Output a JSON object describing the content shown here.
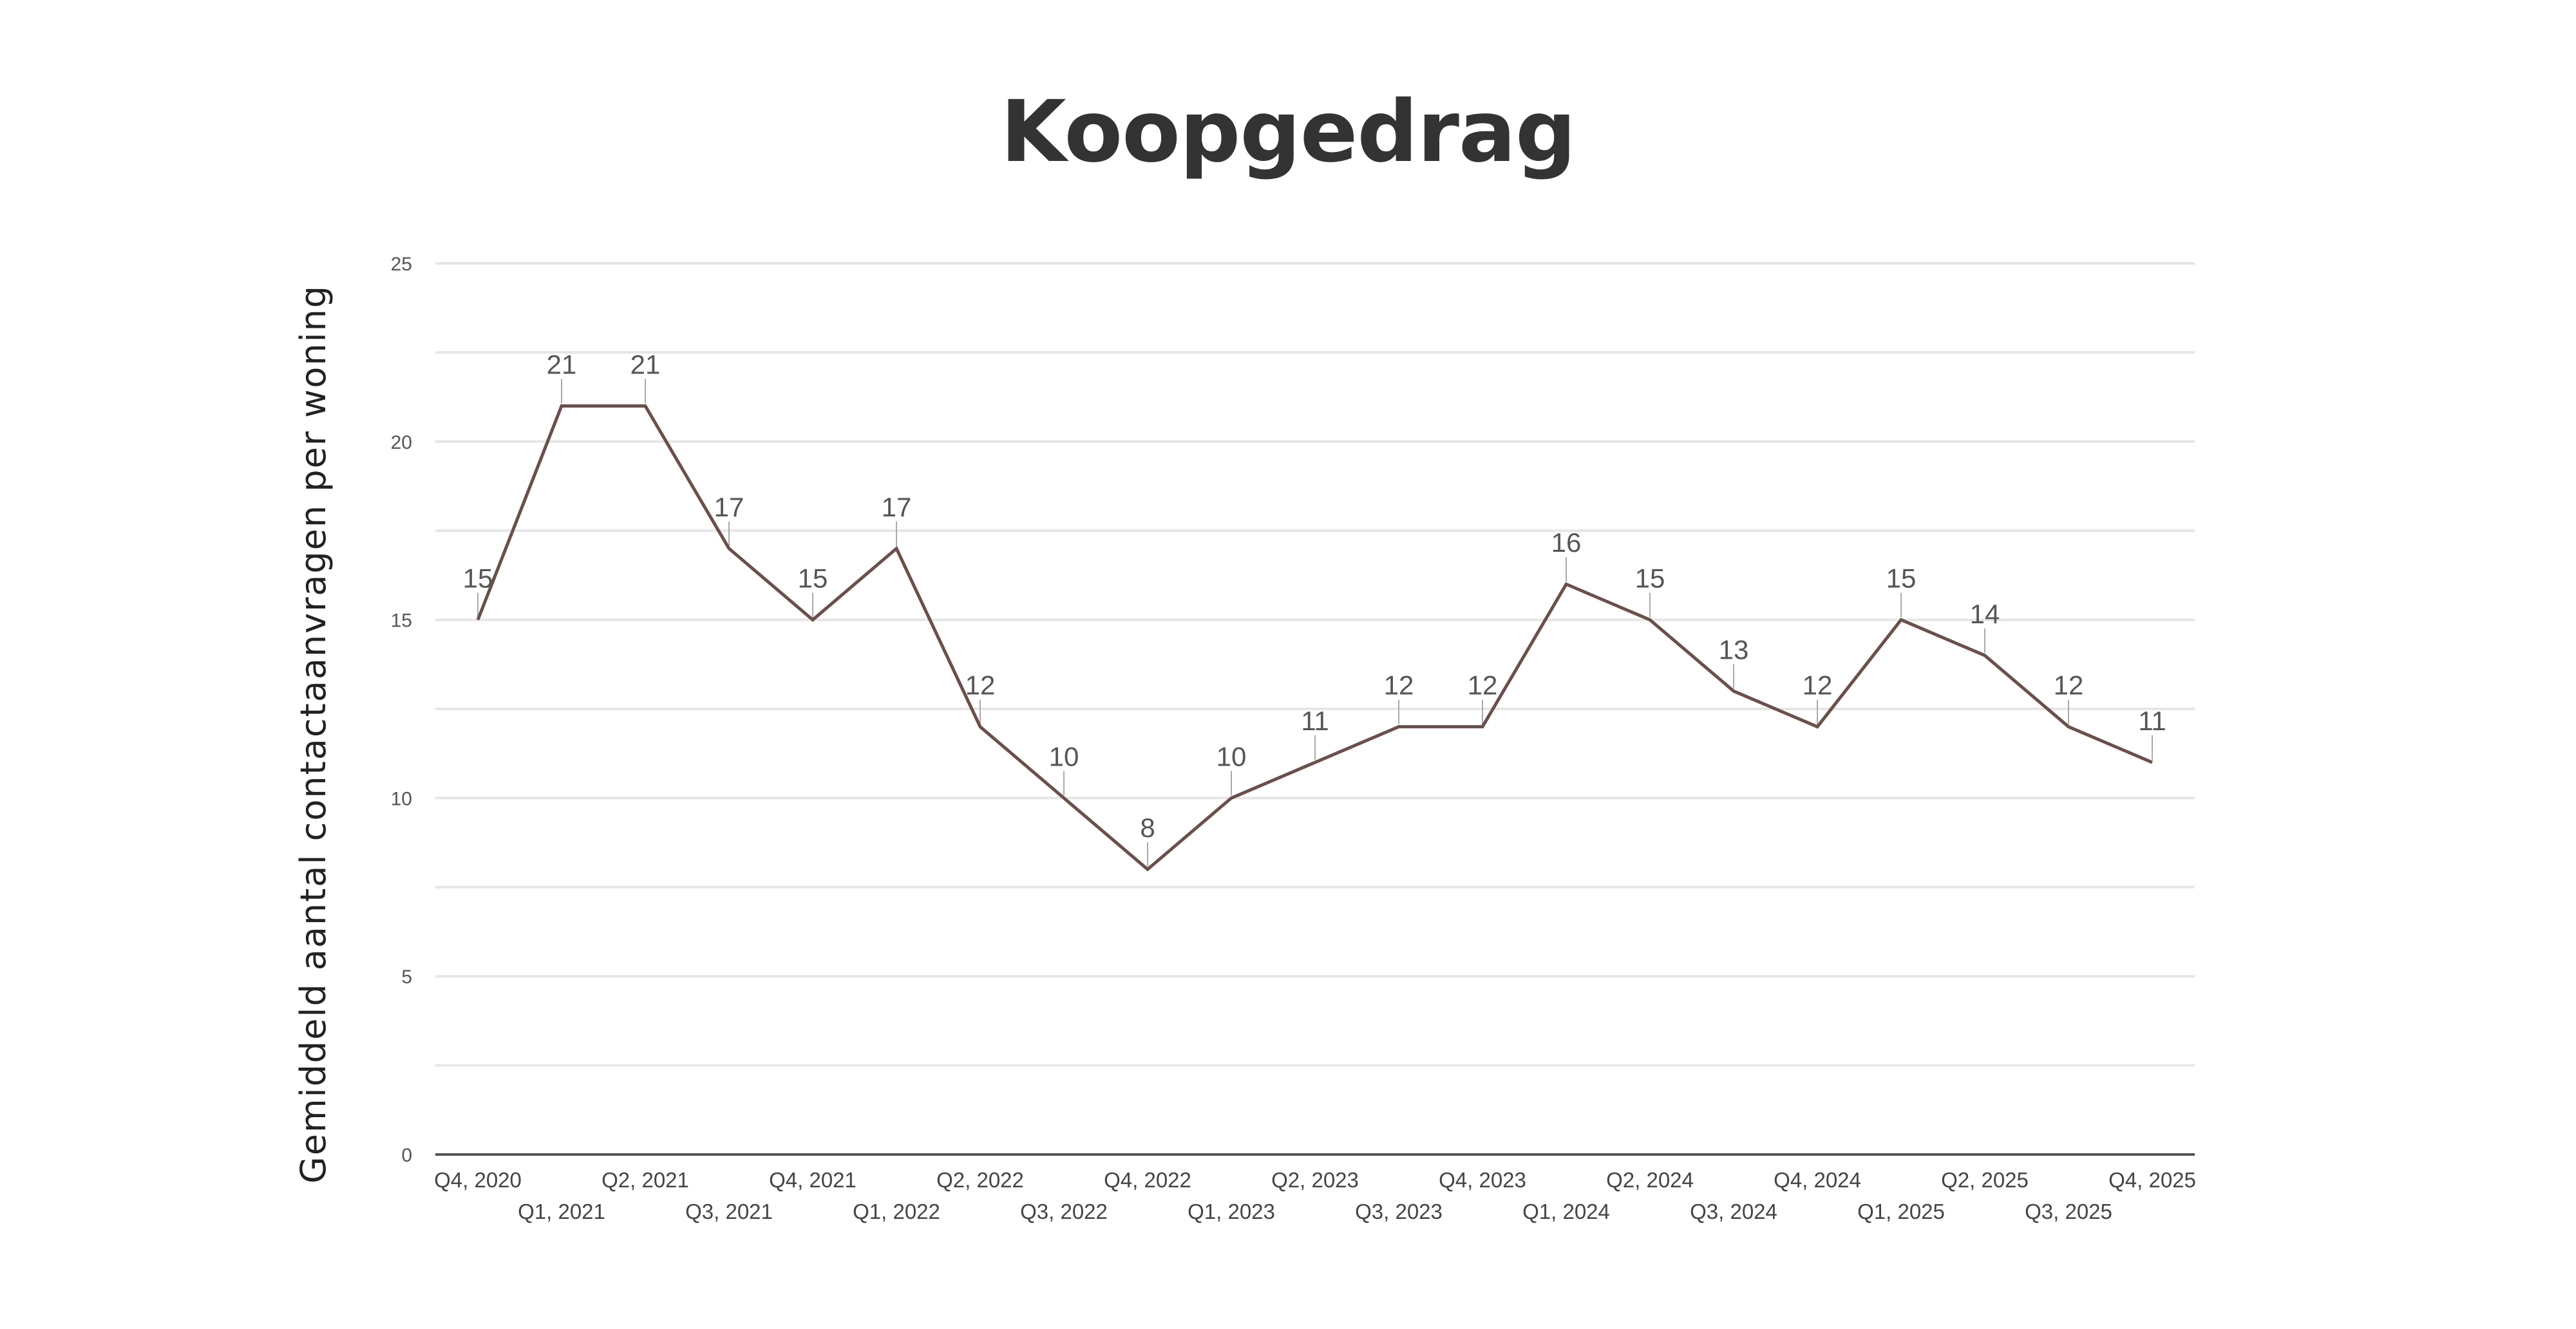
{
  "chart_data": {
    "type": "line",
    "title": "Koopgedrag",
    "xlabel": "",
    "ylabel": "Gemiddeld aantal contactaanvragen per woning",
    "ylim": [
      0,
      25
    ],
    "yticks": [
      0,
      5,
      10,
      15,
      20,
      25
    ],
    "grid": true,
    "legend": null,
    "categories": [
      "Q4, 2020",
      "Q1, 2021",
      "Q2, 2021",
      "Q3, 2021",
      "Q4, 2021",
      "Q1, 2022",
      "Q2, 2022",
      "Q3, 2022",
      "Q4, 2022",
      "Q1, 2023",
      "Q2, 2023",
      "Q3, 2023",
      "Q4, 2023",
      "Q1, 2024",
      "Q2, 2024",
      "Q3, 2024",
      "Q4, 2024",
      "Q1, 2025",
      "Q2, 2025",
      "Q3, 2025",
      "Q4, 2025"
    ],
    "series": [
      {
        "name": "Gemiddeld aantal contactaanvragen per woning",
        "color": "#6b4f4b",
        "values": [
          15,
          21,
          21,
          17,
          15,
          17,
          12,
          10,
          8,
          10,
          11,
          12,
          12,
          16,
          15,
          13,
          12,
          15,
          14,
          12,
          11
        ],
        "data_labels": true
      }
    ]
  },
  "colors": {
    "line": "#6b4f4b",
    "grid": "#e6e6e6",
    "axis": "#555555",
    "title": "#333333"
  }
}
